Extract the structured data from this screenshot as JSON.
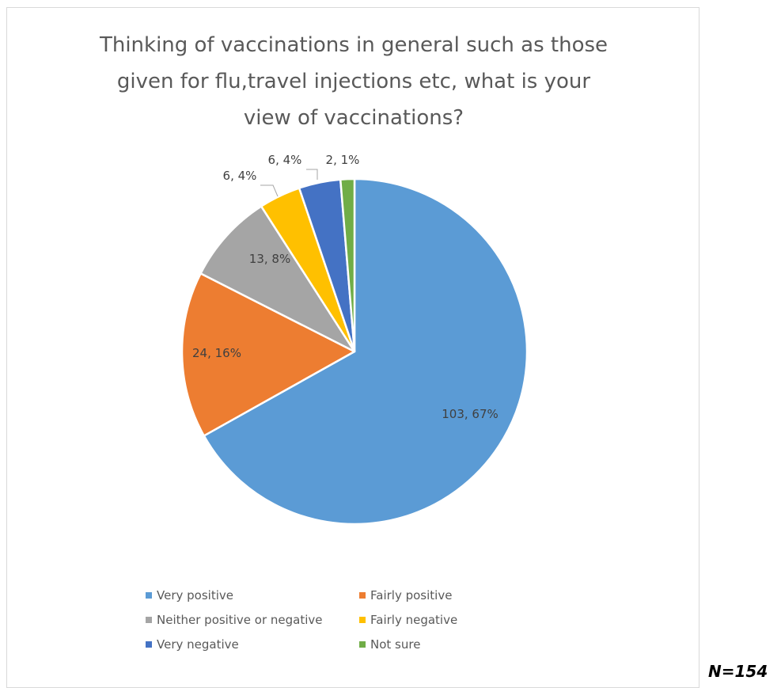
{
  "chart_data": {
    "type": "pie",
    "title_lines": [
      "Thinking of vaccinations in general such as those",
      "given for flu,travel injections etc, what is your",
      "view of vaccinations?"
    ],
    "slices": [
      {
        "name": "Very positive",
        "value": 103,
        "percent": 67,
        "label": "103, 67%",
        "color": "#5b9bd5"
      },
      {
        "name": "Fairly positive",
        "value": 24,
        "percent": 16,
        "label": "24, 16%",
        "color": "#ed7d31"
      },
      {
        "name": "Neither positive or negative",
        "value": 13,
        "percent": 8,
        "label": "13, 8%",
        "color": "#a5a5a5"
      },
      {
        "name": "Fairly negative",
        "value": 6,
        "percent": 4,
        "label": "6, 4%",
        "color": "#ffc000"
      },
      {
        "name": "Very negative",
        "value": 6,
        "percent": 4,
        "label": "6, 4%",
        "color": "#4472c4"
      },
      {
        "name": "Not sure",
        "value": 2,
        "percent": 1,
        "label": "2, 1%",
        "color": "#70ad47"
      }
    ],
    "legend_order": [
      "Very positive",
      "Fairly positive",
      "Neither positive or negative",
      "Fairly negative",
      "Very negative",
      "Not sure"
    ],
    "legend_position": "bottom"
  },
  "note": "N=154"
}
